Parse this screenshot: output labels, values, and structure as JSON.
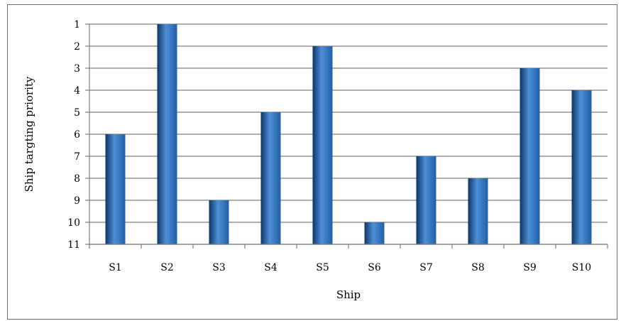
{
  "chart_data": {
    "type": "bar",
    "title": "",
    "xlabel": "Ship",
    "ylabel": "Ship targting priority",
    "categories": [
      "S1",
      "S2",
      "S3",
      "S4",
      "S5",
      "S6",
      "S7",
      "S8",
      "S9",
      "S10"
    ],
    "values": [
      6,
      1,
      9,
      5,
      2,
      10,
      7,
      8,
      3,
      4
    ],
    "ylim": [
      1,
      11
    ],
    "y_axis_inverted": true,
    "yticks": [
      1,
      2,
      3,
      4,
      5,
      6,
      7,
      8,
      9,
      10,
      11
    ],
    "grid": true,
    "legend": "none",
    "bar_color": "#1f5fa8",
    "bar_highlight_color": "#4d8fd6",
    "bar_shadow_color": "#0e3566"
  }
}
